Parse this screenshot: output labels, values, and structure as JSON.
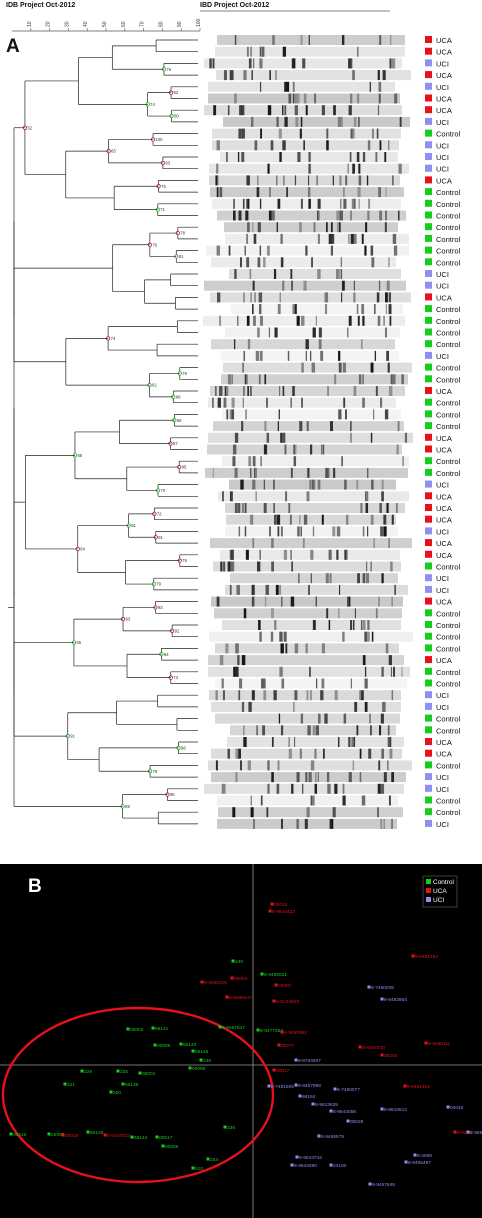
{
  "header": {
    "left_title": "IDB Project Oct-2012",
    "right_title": "IBD Project Oct-2012",
    "scale_ticks": [
      "10",
      "20",
      "30",
      "40",
      "50",
      "60",
      "70",
      "80",
      "90",
      "100"
    ]
  },
  "panel_a": {
    "letter": "A",
    "rows": [
      "UCA",
      "UCA",
      "UCI",
      "UCA",
      "UCI",
      "UCA",
      "UCA",
      "UCI",
      "Control",
      "UCI",
      "UCI",
      "UCI",
      "UCA",
      "Control",
      "Control",
      "Control",
      "Control",
      "Control",
      "Control",
      "Control",
      "UCI",
      "UCI",
      "UCA",
      "Control",
      "Control",
      "Control",
      "Control",
      "UCI",
      "Control",
      "Control",
      "UCA",
      "Control",
      "Control",
      "Control",
      "UCA",
      "UCA",
      "Control",
      "Control",
      "UCI",
      "UCA",
      "UCA",
      "UCA",
      "UCI",
      "UCA",
      "UCA",
      "Control",
      "UCI",
      "UCI",
      "UCA",
      "Control",
      "Control",
      "Control",
      "Control",
      "UCA",
      "Control",
      "Control",
      "UCI",
      "UCI",
      "Control",
      "Control",
      "UCA",
      "UCA",
      "Control",
      "UCI",
      "UCI",
      "Control",
      "Control",
      "UCI"
    ],
    "node_labels": [
      "76",
      "82",
      "80",
      "100",
      "93",
      "75",
      "71",
      "78",
      "91",
      "79",
      "99",
      "59",
      "57",
      "95",
      "70",
      "72",
      "91",
      "76",
      "79",
      "93",
      "92",
      "94",
      "73",
      "98",
      "79",
      "95",
      "74",
      "65",
      "76",
      "74",
      "92",
      "91",
      "93",
      "89",
      "68",
      "84",
      "55",
      "91",
      "52"
    ],
    "group_colors": {
      "UCA": "#e8101a",
      "Control": "#16cc1c",
      "UCI": "#8f8ff0"
    }
  },
  "panel_b": {
    "letter": "B",
    "legend": [
      {
        "label": "Control",
        "color": "#16cc1c"
      },
      {
        "label": "UCA",
        "color": "#e8101a"
      },
      {
        "label": "UCI",
        "color": "#8f8ff0"
      }
    ],
    "ellipse_color": "#e8101a",
    "points": [
      {
        "label": "00015",
        "group": "UCA"
      },
      {
        "label": "8-9644422",
        "group": "UCA"
      },
      {
        "label": "240",
        "group": "Control"
      },
      {
        "label": "8-9458021",
        "group": "Control"
      },
      {
        "label": "00004",
        "group": "UCA"
      },
      {
        "label": "00007",
        "group": "UCA"
      },
      {
        "label": "8-9490315",
        "group": "UCA"
      },
      {
        "label": "8-9490447",
        "group": "UCA"
      },
      {
        "label": "8-9134553",
        "group": "UCA"
      },
      {
        "label": "8-9481264",
        "group": "UCA"
      },
      {
        "label": "8-7490208",
        "group": "UCI"
      },
      {
        "label": "8-9482904",
        "group": "UCI"
      },
      {
        "label": "00003",
        "group": "Control"
      },
      {
        "label": "66141",
        "group": "Control"
      },
      {
        "label": "8-9467947",
        "group": "Control"
      },
      {
        "label": "8-9477364",
        "group": "Control"
      },
      {
        "label": "8-9480992",
        "group": "UCA"
      },
      {
        "label": "00277",
        "group": "UCA"
      },
      {
        "label": "8-9486111",
        "group": "UCA"
      },
      {
        "label": "8-9467240",
        "group": "UCA"
      },
      {
        "label": "00005",
        "group": "Control"
      },
      {
        "label": "66143",
        "group": "Control"
      },
      {
        "label": "66145",
        "group": "Control"
      },
      {
        "label": "246",
        "group": "Control"
      },
      {
        "label": "00096",
        "group": "Control"
      },
      {
        "label": "8-8704937",
        "group": "UCI"
      },
      {
        "label": "00200",
        "group": "UCA"
      },
      {
        "label": "229",
        "group": "Control"
      },
      {
        "label": "235",
        "group": "Control"
      },
      {
        "label": "00004",
        "group": "Control"
      },
      {
        "label": "221",
        "group": "Control"
      },
      {
        "label": "66139",
        "group": "Control"
      },
      {
        "label": "250",
        "group": "Control"
      },
      {
        "label": "8-7491905",
        "group": "UCI"
      },
      {
        "label": "8-9467998",
        "group": "UCI"
      },
      {
        "label": "8-7490077",
        "group": "UCI"
      },
      {
        "label": "00017",
        "group": "UCA"
      },
      {
        "label": "8-9481461",
        "group": "UCA"
      },
      {
        "label": "66184",
        "group": "UCI"
      },
      {
        "label": "8-9813625",
        "group": "UCI"
      },
      {
        "label": "8-9644058",
        "group": "UCI"
      },
      {
        "label": "8-9643612",
        "group": "UCI"
      },
      {
        "label": "04040",
        "group": "UCI"
      },
      {
        "label": "00028",
        "group": "UCI"
      },
      {
        "label": "00016",
        "group": "Control"
      },
      {
        "label": "25005",
        "group": "Control"
      },
      {
        "label": "00018",
        "group": "UCA"
      },
      {
        "label": "66148",
        "group": "Control"
      },
      {
        "label": "8-5457833",
        "group": "UCA"
      },
      {
        "label": "66142",
        "group": "Control"
      },
      {
        "label": "00017",
        "group": "Control"
      },
      {
        "label": "00006",
        "group": "Control"
      },
      {
        "label": "236",
        "group": "Control"
      },
      {
        "label": "8-9468579",
        "group": "UCI"
      },
      {
        "label": "8-9460",
        "group": "UCA"
      },
      {
        "label": "8-9890",
        "group": "UCI"
      },
      {
        "label": "253",
        "group": "Control"
      },
      {
        "label": "8-9643744",
        "group": "UCI"
      },
      {
        "label": "8-9644090",
        "group": "UCI"
      },
      {
        "label": "24100",
        "group": "UCI"
      },
      {
        "label": "8-4099",
        "group": "UCI"
      },
      {
        "label": "8-9465487",
        "group": "UCI"
      },
      {
        "label": "510",
        "group": "Control"
      },
      {
        "label": "8-9457648",
        "group": "UCI"
      }
    ]
  }
}
